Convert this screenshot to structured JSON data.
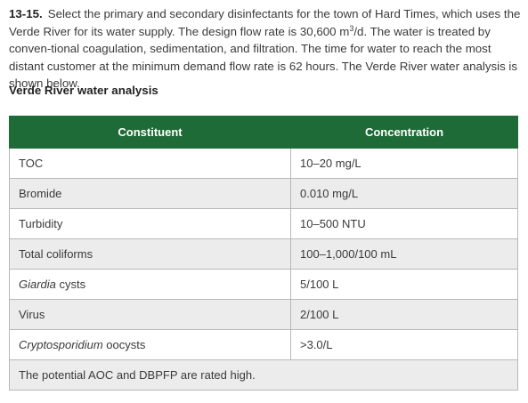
{
  "problem": {
    "number": "13-15.",
    "text_before_sup": "Select the primary and secondary disinfectants for the town of Hard Times, which uses the Verde River for its water supply. The design flow rate is 30,600 m",
    "sup": "3",
    "text_after_sup": "/d. The water is treated by conven-tional coagulation, sedimentation, and filtration. The time for water to reach the most distant customer at the minimum demand flow rate is 62 hours. The Verde River water analysis is shown below."
  },
  "section_title": "Verde River water analysis",
  "table": {
    "headers": {
      "constituent": "Constituent",
      "concentration": "Concentration"
    },
    "rows": [
      {
        "constituent": "TOC",
        "rest": "",
        "concentration": "10–20 mg/L"
      },
      {
        "constituent": "Bromide",
        "rest": "",
        "concentration": "0.010 mg/L"
      },
      {
        "constituent": "Turbidity",
        "rest": "",
        "concentration": "10–500 NTU"
      },
      {
        "constituent": "Total coliforms",
        "rest": "",
        "concentration": "100–1,000/100 mL"
      },
      {
        "constituent": "Giardia",
        "rest": " cysts",
        "concentration": "5/100 L"
      },
      {
        "constituent": "Virus",
        "rest": "",
        "concentration": "2/100 L"
      },
      {
        "constituent": "Cryptosporidium",
        "rest": " oocysts",
        "concentration": ">3.0/L"
      }
    ],
    "note": "The potential AOC and DBPFP are rated high."
  }
}
